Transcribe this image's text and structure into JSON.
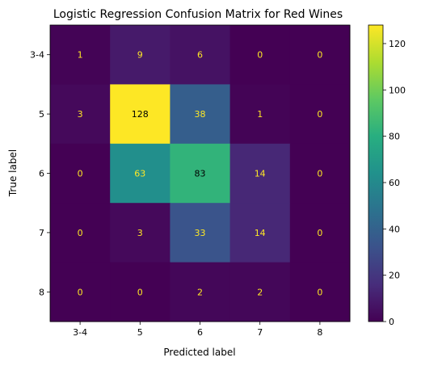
{
  "chart_data": {
    "type": "heatmap",
    "title": "Logistic Regression Confusion Matrix for Red Wines",
    "xlabel": "Predicted label",
    "ylabel": "True label",
    "x_categories": [
      "3-4",
      "5",
      "6",
      "7",
      "8"
    ],
    "y_categories": [
      "3-4",
      "5",
      "6",
      "7",
      "8"
    ],
    "values": [
      [
        1,
        9,
        6,
        0,
        0
      ],
      [
        3,
        128,
        38,
        1,
        0
      ],
      [
        0,
        63,
        83,
        14,
        0
      ],
      [
        0,
        3,
        33,
        14,
        0
      ],
      [
        0,
        0,
        2,
        2,
        0
      ]
    ],
    "colormap": "viridis",
    "vmin": 0,
    "vmax": 128,
    "colorbar_ticks": [
      0,
      20,
      40,
      60,
      80,
      100,
      120
    ],
    "light_text_color": "#fde725",
    "dark_text_color": "#000000"
  }
}
